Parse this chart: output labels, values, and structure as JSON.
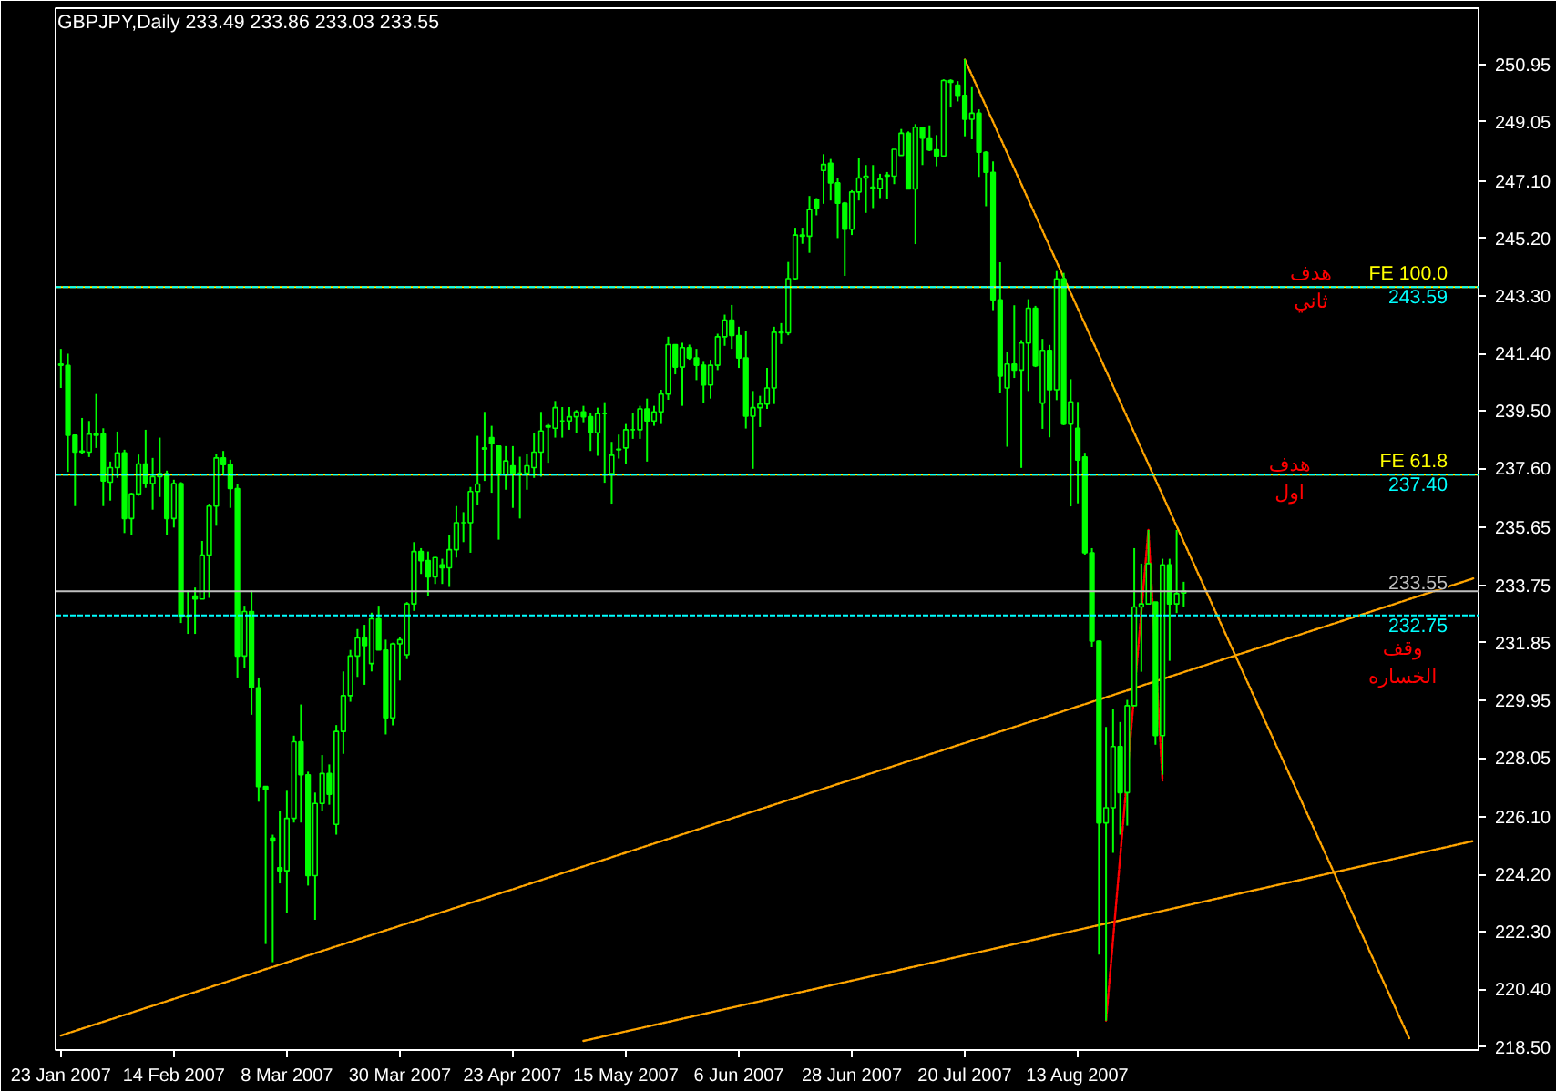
{
  "chart_data": {
    "type": "candlestick",
    "title": "GBPJPY,Daily  233.49 233.86 233.03 233.55",
    "color": "#00ff00",
    "categories": [
      "23 Jan 2007",
      null,
      null,
      null,
      null,
      null,
      null,
      null,
      null,
      null,
      null,
      null,
      null,
      null,
      null,
      null,
      "14 Feb 2007",
      null,
      null,
      null,
      null,
      null,
      null,
      null,
      null,
      null,
      null,
      null,
      null,
      null,
      null,
      null,
      "8 Mar 2007",
      null,
      null,
      null,
      null,
      null,
      null,
      null,
      null,
      null,
      null,
      null,
      null,
      null,
      null,
      null,
      "30 Mar 2007",
      null,
      null,
      null,
      null,
      null,
      null,
      null,
      null,
      null,
      null,
      null,
      null,
      null,
      null,
      null,
      "23 Apr 2007",
      null,
      null,
      null,
      null,
      null,
      null,
      null,
      null,
      null,
      null,
      null,
      null,
      null,
      null,
      null,
      "15 May 2007",
      null,
      null,
      null,
      null,
      null,
      null,
      null,
      null,
      null,
      null,
      null,
      null,
      null,
      null,
      null,
      "6 Jun 2007",
      null,
      null,
      null,
      null,
      null,
      null,
      null,
      null,
      null,
      null,
      null,
      null,
      null,
      null,
      null,
      "28 Jun 2007",
      null,
      null,
      null,
      null,
      null,
      null,
      null,
      null,
      null,
      null,
      null,
      null,
      null,
      null,
      null,
      "20 Jul 2007",
      null,
      null,
      null,
      null,
      null,
      null,
      null,
      null,
      null,
      null,
      null,
      null,
      null,
      null,
      null,
      "13 Aug 2007",
      null,
      null,
      null,
      null,
      null,
      null,
      null,
      null,
      null,
      null,
      null,
      null,
      null,
      null,
      null,
      null,
      null,
      null,
      null,
      null,
      null,
      null,
      null,
      null,
      null,
      null,
      null,
      null,
      null,
      null,
      null,
      null,
      null,
      null,
      null,
      null,
      null,
      null,
      null,
      null,
      null,
      null,
      null,
      null,
      null,
      null,
      null,
      null,
      null,
      null,
      null,
      null,
      null,
      null,
      null,
      null
    ],
    "ohlc": [
      [
        241.05,
        241.55,
        240.26,
        241.01
      ],
      [
        241.0,
        241.39,
        237.49,
        238.7
      ],
      [
        238.7,
        238.72,
        236.36,
        238.14
      ],
      [
        238.14,
        239.27,
        238.08,
        238.18
      ],
      [
        238.14,
        239.17,
        237.98,
        238.74
      ],
      [
        238.7,
        240.06,
        238.28,
        238.74
      ],
      [
        238.74,
        238.93,
        236.36,
        237.19
      ],
      [
        237.15,
        237.83,
        236.54,
        237.63
      ],
      [
        237.63,
        238.82,
        237.29,
        238.12
      ],
      [
        238.12,
        238.22,
        235.47,
        235.95
      ],
      [
        235.95,
        236.8,
        235.41,
        236.76
      ],
      [
        236.76,
        238.06,
        236.7,
        237.75
      ],
      [
        237.75,
        238.88,
        236.96,
        237.1
      ],
      [
        237.1,
        237.95,
        236.24,
        237.33
      ],
      [
        237.33,
        238.62,
        236.66,
        237.43
      ],
      [
        237.43,
        237.53,
        235.41,
        235.95
      ],
      [
        235.95,
        237.23,
        235.65,
        237.1
      ],
      [
        237.1,
        237.15,
        232.5,
        232.7
      ],
      [
        232.7,
        233.57,
        232.14,
        232.74
      ],
      [
        233.39,
        233.67,
        232.14,
        233.29
      ],
      [
        233.29,
        235.21,
        233.29,
        234.74
      ],
      [
        234.74,
        236.44,
        233.33,
        236.36
      ],
      [
        236.36,
        238.08,
        235.71,
        237.95
      ],
      [
        237.95,
        238.18,
        237.43,
        237.73
      ],
      [
        237.73,
        237.89,
        236.3,
        236.94
      ],
      [
        236.94,
        237.09,
        230.7,
        231.41
      ],
      [
        231.41,
        233.07,
        231.02,
        232.88
      ],
      [
        232.88,
        233.57,
        229.47,
        230.36
      ],
      [
        230.36,
        230.7,
        226.6,
        227.1
      ],
      [
        227.1,
        227.1,
        221.9,
        227.0
      ],
      [
        225.4,
        225.51,
        221.3,
        225.3
      ],
      [
        224.42,
        226.3,
        223.9,
        224.32
      ],
      [
        224.32,
        226.96,
        222.94,
        226.05
      ],
      [
        226.05,
        228.78,
        225.91,
        228.58
      ],
      [
        228.58,
        229.81,
        225.91,
        227.49
      ],
      [
        227.49,
        227.59,
        223.83,
        224.16
      ],
      [
        224.16,
        226.9,
        222.7,
        226.54
      ],
      [
        226.54,
        228.14,
        226.3,
        227.53
      ],
      [
        227.53,
        227.83,
        226.5,
        226.84
      ],
      [
        225.85,
        229.13,
        225.51,
        228.92
      ],
      [
        228.92,
        230.9,
        228.18,
        230.1
      ],
      [
        230.1,
        231.61,
        229.9,
        231.41
      ],
      [
        231.41,
        232.3,
        230.72,
        232.01
      ],
      [
        232.01,
        232.44,
        230.46,
        231.75
      ],
      [
        231.16,
        232.84,
        230.9,
        232.64
      ],
      [
        232.64,
        233.07,
        231.6,
        231.61
      ],
      [
        231.61,
        231.95,
        228.82,
        229.37
      ],
      [
        229.37,
        231.85,
        229.12,
        231.81
      ],
      [
        231.81,
        232.05,
        230.6,
        231.95
      ],
      [
        231.45,
        233.19,
        231.31,
        233.13
      ],
      [
        233.13,
        235.17,
        232.9,
        234.86
      ],
      [
        234.86,
        234.97,
        234.12,
        234.56
      ],
      [
        234.56,
        234.86,
        233.39,
        234.02
      ],
      [
        234.02,
        234.68,
        233.79,
        234.66
      ],
      [
        234.42,
        234.62,
        233.79,
        234.32
      ],
      [
        234.32,
        235.41,
        233.69,
        234.92
      ],
      [
        234.92,
        236.36,
        234.66,
        235.81
      ],
      [
        235.81,
        236.16,
        235.17,
        235.81
      ],
      [
        235.81,
        236.99,
        234.82,
        236.84
      ],
      [
        236.84,
        238.68,
        236.4,
        237.09
      ],
      [
        238.28,
        239.47,
        237.19,
        238.24
      ],
      [
        238.62,
        239.01,
        236.8,
        238.42
      ],
      [
        238.34,
        238.34,
        235.25,
        237.39
      ],
      [
        237.39,
        238.34,
        236.9,
        237.85
      ],
      [
        237.69,
        238.34,
        236.3,
        237.45
      ],
      [
        237.45,
        237.99,
        235.95,
        237.45
      ],
      [
        237.45,
        238.08,
        236.9,
        237.69
      ],
      [
        237.63,
        238.78,
        237.29,
        238.14
      ],
      [
        238.14,
        239.47,
        237.33,
        238.84
      ],
      [
        238.97,
        239.07,
        237.79,
        239.01
      ],
      [
        238.93,
        239.83,
        238.62,
        239.61
      ],
      [
        239.17,
        239.63,
        238.62,
        239.17
      ],
      [
        239.17,
        239.63,
        238.88,
        239.31
      ],
      [
        239.31,
        239.53,
        238.78,
        239.47
      ],
      [
        239.47,
        239.67,
        239.13,
        239.31
      ],
      [
        239.31,
        239.43,
        238.18,
        238.78
      ],
      [
        238.78,
        239.61,
        238.02,
        239.41
      ],
      [
        239.41,
        239.79,
        237.13,
        239.41
      ],
      [
        237.43,
        238.48,
        236.44,
        238.04
      ],
      [
        238.22,
        238.72,
        237.93,
        238.24
      ],
      [
        238.28,
        239.07,
        237.75,
        238.88
      ],
      [
        238.88,
        239.43,
        238.58,
        238.88
      ],
      [
        238.88,
        239.67,
        238.58,
        239.57
      ],
      [
        239.57,
        239.91,
        237.83,
        239.17
      ],
      [
        239.17,
        239.67,
        239.01,
        239.47
      ],
      [
        239.47,
        240.2,
        239.07,
        240.06
      ],
      [
        240.06,
        241.95,
        239.87,
        241.69
      ],
      [
        241.69,
        241.69,
        240.71,
        240.95
      ],
      [
        240.95,
        241.75,
        239.67,
        241.59
      ],
      [
        241.59,
        241.69,
        241.19,
        241.25
      ],
      [
        241.25,
        241.55,
        240.52,
        241.01
      ],
      [
        241.01,
        241.15,
        239.77,
        240.36
      ],
      [
        240.36,
        241.19,
        239.91,
        241.01
      ],
      [
        241.01,
        242.05,
        240.85,
        241.95
      ],
      [
        241.95,
        242.68,
        241.65,
        242.5
      ],
      [
        242.5,
        243.0,
        241.55,
        241.99
      ],
      [
        241.99,
        242.28,
        240.92,
        241.25
      ],
      [
        241.25,
        242.14,
        238.92,
        239.33
      ],
      [
        239.33,
        240.16,
        237.59,
        239.61
      ],
      [
        239.61,
        240.0,
        238.97,
        239.73
      ],
      [
        239.73,
        240.92,
        239.57,
        240.26
      ],
      [
        240.26,
        242.28,
        239.73,
        242.1
      ],
      [
        242.1,
        242.4,
        241.71,
        242.08
      ],
      [
        242.08,
        244.42,
        242.0,
        243.87
      ],
      [
        243.87,
        245.55,
        243.83,
        245.31
      ],
      [
        245.31,
        245.55,
        245.02,
        245.27
      ],
      [
        245.27,
        246.6,
        244.72,
        246.15
      ],
      [
        246.49,
        246.53,
        245.96,
        246.2
      ],
      [
        247.44,
        247.98,
        246.34,
        247.64
      ],
      [
        247.68,
        247.82,
        246.45,
        247.03
      ],
      [
        247.03,
        247.19,
        245.21,
        246.36
      ],
      [
        246.36,
        246.4,
        243.96,
        245.5
      ],
      [
        245.5,
        246.79,
        245.31,
        246.73
      ],
      [
        246.73,
        247.84,
        246.45,
        247.19
      ],
      [
        247.19,
        247.62,
        246.04,
        247.25
      ],
      [
        246.89,
        247.62,
        246.2,
        246.85
      ],
      [
        246.85,
        247.33,
        246.53,
        247.15
      ],
      [
        247.29,
        247.39,
        246.49,
        247.25
      ],
      [
        247.25,
        248.14,
        246.99,
        248.14
      ],
      [
        247.94,
        248.81,
        247.94,
        248.67
      ],
      [
        248.67,
        248.73,
        246.83,
        246.83
      ],
      [
        246.83,
        248.97,
        245.01,
        248.87
      ],
      [
        248.87,
        248.87,
        247.62,
        248.51
      ],
      [
        248.51,
        248.93,
        248.08,
        248.12
      ],
      [
        248.12,
        248.61,
        247.58,
        247.92
      ],
      [
        247.92,
        250.45,
        247.92,
        250.41
      ],
      [
        250.41,
        250.45,
        249.52,
        250.35
      ],
      [
        250.26,
        250.39,
        249.72,
        249.92
      ],
      [
        249.92,
        251.11,
        248.57,
        249.13
      ],
      [
        249.13,
        250.22,
        248.47,
        249.33
      ],
      [
        249.33,
        249.46,
        247.23,
        248.04
      ],
      [
        248.04,
        248.08,
        246.26,
        247.38
      ],
      [
        247.38,
        247.74,
        242.83,
        243.17
      ],
      [
        243.17,
        244.41,
        240.1,
        240.65
      ],
      [
        240.26,
        241.44,
        238.32,
        241.05
      ],
      [
        241.05,
        242.99,
        240.59,
        240.85
      ],
      [
        240.85,
        241.84,
        237.62,
        241.74
      ],
      [
        241.74,
        243.19,
        240.16,
        242.89
      ],
      [
        242.89,
        242.97,
        240.95,
        240.99
      ],
      [
        239.76,
        241.88,
        238.91,
        241.5
      ],
      [
        241.5,
        241.68,
        238.63,
        240.2
      ],
      [
        240.2,
        244.12,
        239.86,
        243.86
      ],
      [
        243.86,
        244.06,
        239.03,
        239.07
      ],
      [
        239.07,
        240.55,
        236.35,
        239.8
      ],
      [
        238.93,
        239.8,
        236.45,
        237.88
      ],
      [
        237.98,
        238.12,
        234.76,
        234.82
      ],
      [
        234.82,
        234.97,
        231.71,
        231.9
      ],
      [
        231.9,
        231.92,
        221.55,
        225.9
      ],
      [
        225.9,
        229.07,
        219.37,
        226.4
      ],
      [
        226.4,
        229.67,
        224.91,
        228.42
      ],
      [
        228.42,
        229.23,
        225.51,
        226.9
      ],
      [
        226.9,
        229.96,
        225.81,
        229.77
      ],
      [
        229.77,
        234.97,
        229.77,
        233.03
      ],
      [
        233.03,
        234.46,
        230.89,
        233.13
      ],
      [
        233.13,
        235.57,
        233.13,
        234.46
      ],
      [
        233.19,
        233.19,
        228.48,
        228.78
      ],
      [
        228.78,
        234.62,
        227.49,
        234.42
      ],
      [
        234.42,
        234.62,
        231.25,
        233.13
      ],
      [
        233.13,
        235.57,
        232.83,
        233.47
      ],
      [
        233.49,
        233.86,
        233.03,
        233.55
      ],
      null,
      null,
      null,
      null,
      null,
      null,
      null,
      null,
      null,
      null,
      null,
      null,
      null,
      null,
      null,
      null,
      null,
      null,
      null,
      null,
      null,
      null,
      null,
      null,
      null,
      null,
      null,
      null,
      null,
      null,
      null,
      null,
      null,
      null,
      null,
      null,
      null,
      null,
      null,
      null,
      null
    ],
    "series": [
      {
        "type": "line",
        "color": "#ffa500",
        "line_style": "dotted",
        "values": [
          null,
          null,
          null,
          null,
          null,
          null,
          null,
          null,
          null,
          null,
          null,
          null,
          null,
          null,
          null,
          null,
          null,
          null,
          null,
          null,
          null,
          null,
          null,
          null,
          null,
          null,
          null,
          null,
          null,
          null,
          null,
          null,
          null,
          null,
          null,
          null,
          null,
          null,
          null,
          null,
          null,
          null,
          null,
          null,
          null,
          null,
          null,
          null,
          null,
          null,
          null,
          null,
          null,
          null,
          null,
          null,
          null,
          null,
          null,
          null,
          null,
          null,
          null,
          null,
          null,
          null,
          null,
          null,
          null,
          null,
          null,
          null,
          null,
          null,
          null,
          null,
          null,
          null,
          null,
          null,
          null,
          null,
          null,
          null,
          null,
          null,
          null,
          null,
          null,
          null,
          null,
          null,
          null,
          null,
          null,
          null,
          null,
          null,
          null,
          null,
          null,
          null,
          null,
          null,
          null,
          null,
          null,
          null,
          null,
          null,
          null,
          null,
          null,
          null,
          null,
          null,
          null,
          null,
          null,
          null,
          null,
          null,
          null,
          null,
          null,
          null,
          null,
          null,
          251.1,
          null,
          null,
          null,
          null,
          null,
          null,
          null,
          null,
          null,
          null,
          null,
          null,
          null,
          null,
          null,
          null,
          null,
          null,
          null,
          null,
          null,
          null,
          null,
          null,
          null,
          null,
          null,
          null,
          null,
          null,
          null,
          null,
          null,
          null,
          null,
          null,
          null,
          null,
          null,
          null,
          null,
          null,
          null,
          null,
          null,
          null,
          null,
          null,
          null,
          null,
          null,
          null,
          null,
          null,
          null,
          null,
          null,
          null,
          null,
          null,
          null,
          null,
          218.75,
          null,
          null,
          null,
          null,
          null,
          null,
          null,
          null,
          null
        ]
      },
      {
        "type": "line",
        "color": "#ffa500",
        "line_style": "dotted",
        "values": [
          218.88,
          null,
          null,
          null,
          null,
          null,
          null,
          null,
          null,
          null,
          null,
          null,
          null,
          null,
          null,
          null,
          null,
          null,
          null,
          null,
          null,
          null,
          null,
          null,
          null,
          null,
          null,
          null,
          null,
          null,
          null,
          null,
          null,
          null,
          null,
          null,
          null,
          null,
          null,
          null,
          null,
          null,
          null,
          null,
          null,
          null,
          null,
          null,
          null,
          null,
          null,
          null,
          null,
          null,
          null,
          null,
          null,
          null,
          null,
          null,
          null,
          null,
          null,
          null,
          null,
          null,
          null,
          null,
          null,
          null,
          null,
          null,
          null,
          null,
          null,
          null,
          null,
          null,
          null,
          null,
          null,
          null,
          null,
          null,
          null,
          null,
          null,
          null,
          null,
          null,
          null,
          null,
          null,
          null,
          null,
          null,
          null,
          null,
          null,
          null,
          null,
          null,
          null,
          null,
          null,
          null,
          null,
          null,
          null,
          null,
          null,
          null,
          null,
          null,
          null,
          null,
          null,
          null,
          null,
          null,
          null,
          null,
          null,
          null,
          null,
          null,
          null,
          null,
          null,
          null,
          null,
          null,
          null,
          null,
          null,
          null,
          null,
          null,
          null,
          null,
          null,
          null,
          null,
          null,
          null,
          null,
          null,
          null,
          null,
          null,
          null,
          null,
          null,
          null,
          null,
          null,
          null,
          null,
          null,
          null,
          null,
          null,
          null,
          null,
          null,
          null,
          null,
          null,
          null,
          null,
          null,
          null,
          null,
          null,
          null,
          null,
          null,
          null,
          null,
          null,
          null,
          null,
          null,
          null,
          null,
          null,
          null,
          null,
          null,
          null,
          null,
          null,
          null,
          null,
          null,
          null,
          null,
          null,
          null,
          null,
          233.97
        ]
      },
      {
        "type": "line",
        "color": "#ffa500",
        "line_style": "dotted",
        "values": [
          null,
          null,
          null,
          null,
          null,
          null,
          null,
          null,
          null,
          null,
          null,
          null,
          null,
          null,
          null,
          null,
          null,
          null,
          null,
          null,
          null,
          null,
          null,
          null,
          null,
          null,
          null,
          null,
          null,
          null,
          null,
          null,
          null,
          null,
          null,
          null,
          null,
          null,
          null,
          null,
          null,
          null,
          null,
          null,
          null,
          null,
          null,
          null,
          null,
          null,
          null,
          null,
          null,
          null,
          null,
          null,
          null,
          null,
          null,
          null,
          null,
          null,
          null,
          null,
          null,
          null,
          null,
          null,
          null,
          null,
          null,
          null,
          null,
          null,
          218.7,
          null,
          null,
          null,
          null,
          null,
          null,
          null,
          null,
          null,
          null,
          null,
          null,
          null,
          null,
          null,
          null,
          null,
          null,
          null,
          null,
          null,
          null,
          null,
          null,
          null,
          null,
          null,
          null,
          null,
          null,
          null,
          null,
          null,
          null,
          null,
          null,
          null,
          null,
          null,
          null,
          null,
          null,
          null,
          null,
          null,
          null,
          null,
          null,
          null,
          null,
          null,
          null,
          null,
          null,
          null,
          null,
          null,
          null,
          null,
          null,
          null,
          null,
          null,
          null,
          null,
          null,
          null,
          null,
          null,
          null,
          null,
          null,
          null,
          null,
          null,
          null,
          null,
          null,
          null,
          null,
          null,
          null,
          null,
          null,
          null,
          null,
          null,
          null,
          null,
          null,
          null,
          null,
          null,
          null,
          null,
          null,
          null,
          null,
          null,
          null,
          null,
          null,
          null,
          null,
          null,
          null,
          null,
          null,
          null,
          null,
          null,
          null,
          null,
          null,
          null,
          null,
          null,
          null,
          null,
          null,
          null,
          null,
          null,
          null,
          null,
          225.3
        ]
      },
      {
        "type": "line",
        "color": "#ff0000",
        "line_style": "dashed",
        "values": [
          null,
          null,
          null,
          null,
          null,
          null,
          null,
          null,
          null,
          null,
          null,
          null,
          null,
          null,
          null,
          null,
          null,
          null,
          null,
          null,
          null,
          null,
          null,
          null,
          null,
          null,
          null,
          null,
          null,
          null,
          null,
          null,
          null,
          null,
          null,
          null,
          null,
          null,
          null,
          null,
          null,
          null,
          null,
          null,
          null,
          null,
          null,
          null,
          null,
          null,
          null,
          null,
          null,
          null,
          null,
          null,
          null,
          null,
          null,
          null,
          null,
          null,
          null,
          null,
          null,
          null,
          null,
          null,
          null,
          null,
          null,
          null,
          null,
          null,
          null,
          null,
          null,
          null,
          null,
          null,
          null,
          null,
          null,
          null,
          null,
          null,
          null,
          null,
          null,
          null,
          null,
          null,
          null,
          null,
          null,
          null,
          null,
          null,
          null,
          null,
          null,
          null,
          null,
          null,
          null,
          null,
          null,
          null,
          null,
          null,
          null,
          null,
          null,
          null,
          null,
          null,
          null,
          null,
          null,
          null,
          null,
          null,
          null,
          null,
          null,
          null,
          null,
          null,
          null,
          null,
          null,
          null,
          null,
          null,
          null,
          null,
          null,
          null,
          null,
          null,
          null,
          null,
          null,
          null,
          null,
          null,
          null,
          null,
          219.37,
          null,
          null,
          null,
          null,
          null,
          235.57,
          null,
          227.3,
          null,
          null,
          null,
          null,
          null,
          null,
          null,
          null,
          null,
          null,
          null,
          null,
          null,
          null,
          null,
          null,
          null,
          null,
          null,
          null,
          null,
          null,
          null,
          null,
          null,
          null,
          null,
          null,
          null,
          null,
          null,
          null,
          null,
          null,
          null,
          null,
          null,
          null,
          null,
          null,
          null,
          null,
          null,
          null
        ]
      }
    ],
    "ylim": [
      218.4,
      252.8
    ],
    "yticks": [
      {
        "value": 218.5,
        "label": "218.50"
      },
      {
        "value": 220.4,
        "label": "220.40"
      },
      {
        "value": 222.3,
        "label": "222.30"
      },
      {
        "value": 224.2,
        "label": "224.20"
      },
      {
        "value": 226.1,
        "label": "226.10"
      },
      {
        "value": 228.05,
        "label": "228.05"
      },
      {
        "value": 229.95,
        "label": "229.95"
      },
      {
        "value": 231.85,
        "label": "231.85"
      },
      {
        "value": 233.75,
        "label": "233.75"
      },
      {
        "value": 235.65,
        "label": "235.65"
      },
      {
        "value": 237.6,
        "label": "237.60"
      },
      {
        "value": 239.5,
        "label": "239.50"
      },
      {
        "value": 241.4,
        "label": "241.40"
      },
      {
        "value": 243.3,
        "label": "243.30"
      },
      {
        "value": 245.2,
        "label": "245.20"
      },
      {
        "value": 247.1,
        "label": "247.10"
      },
      {
        "value": 249.05,
        "label": "249.05"
      },
      {
        "value": 250.95,
        "label": "250.95"
      }
    ],
    "ref_lines": [
      {
        "axis": "y",
        "value": 243.59,
        "label": "FE 100.0",
        "color": "#ffff00",
        "line_style": "solid"
      },
      {
        "axis": "y",
        "value": 237.4,
        "label": "FE 61.8",
        "color": "#ffff00",
        "line_style": "solid"
      },
      {
        "axis": "y",
        "value": 243.59,
        "label": "243.59",
        "color": "#00ffff",
        "line_style": "dashed"
      },
      {
        "axis": "y",
        "value": 237.4,
        "label": "237.40",
        "color": "#00ffff",
        "line_style": "dashed"
      },
      {
        "axis": "y",
        "value": 232.75,
        "label": "232.75",
        "color": "#00ffff",
        "line_style": "dashed"
      },
      {
        "axis": "y",
        "value": 233.55,
        "label": "233.55",
        "color": "#c0c0c0",
        "line_style": "solid"
      }
    ],
    "annotations": [
      {
        "text": "هدف ثاني",
        "y": 243.59
      },
      {
        "text": "هدف اول",
        "y": 237.4
      },
      {
        "text": "وقف الخساره",
        "y": 232.75
      }
    ]
  }
}
